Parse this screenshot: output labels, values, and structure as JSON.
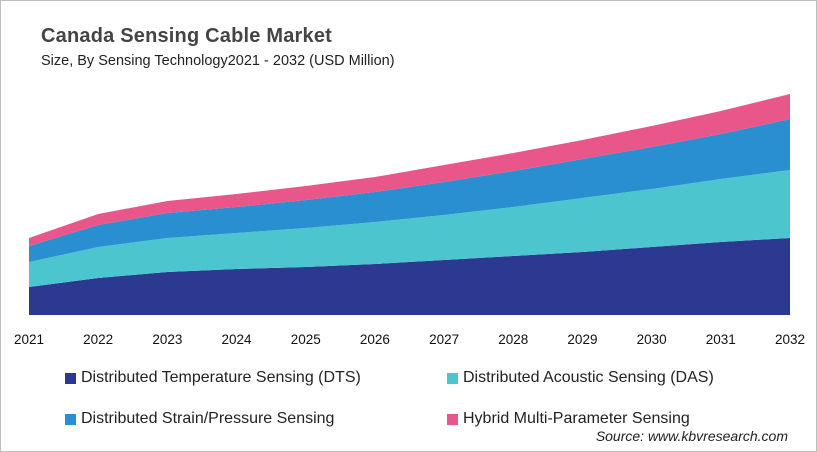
{
  "chart_data": {
    "type": "area",
    "stacked": true,
    "title": "Canada Sensing Cable Market",
    "subtitle": "Size, By Sensing Technology2021 - 2032 (USD Million)",
    "categories": [
      "2021",
      "2022",
      "2023",
      "2024",
      "2025",
      "2026",
      "2027",
      "2028",
      "2029",
      "2030",
      "2031",
      "2032"
    ],
    "y_axis_shown": false,
    "grid": false,
    "legend_placement": "bottom",
    "series": [
      {
        "name": "Distributed Temperature Sensing (DTS)",
        "color": "#2b3990",
        "values": [
          28,
          37,
          43,
          46,
          48,
          51,
          55,
          59,
          63,
          68,
          73,
          77
        ]
      },
      {
        "name": "Distributed Acoustic Sensing (DAS)",
        "color": "#4dc5cf",
        "values": [
          25,
          31,
          34,
          36,
          39,
          42,
          45,
          49,
          54,
          58,
          63,
          68
        ]
      },
      {
        "name": "Distributed Strain/Pressure Sensing",
        "color": "#2a8fd1",
        "values": [
          16,
          22,
          25,
          26,
          28,
          30,
          33,
          36,
          39,
          42,
          45,
          51
        ]
      },
      {
        "name": "Hybrid Multi-Parameter Sensing",
        "color": "#e8568a",
        "values": [
          8,
          11,
          12,
          13,
          14,
          15,
          17,
          18,
          19,
          21,
          23,
          25
        ]
      }
    ],
    "source": "Source: www.kbvresearch.com"
  }
}
